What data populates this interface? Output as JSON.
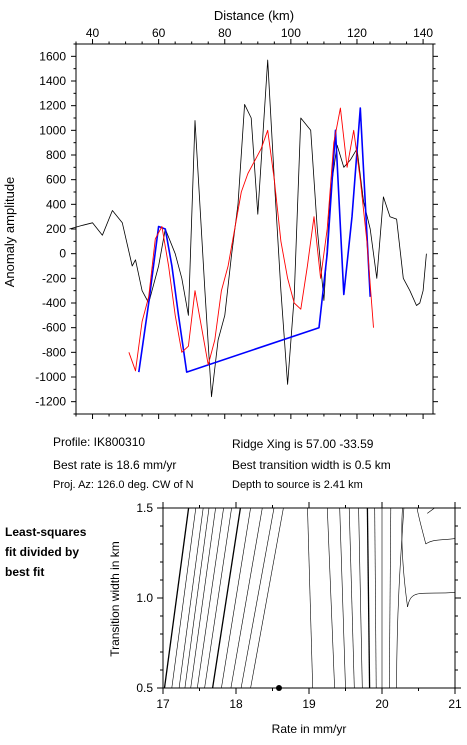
{
  "chart_data": [
    {
      "type": "line",
      "xlabel": "Distance (km)",
      "ylabel": "Anomaly amplitude",
      "xlim": [
        35,
        143
      ],
      "ylim": [
        -1300,
        1700
      ],
      "xticks": [
        40,
        60,
        80,
        100,
        120,
        140
      ],
      "yticks": [
        -1200,
        -1000,
        -800,
        -600,
        -400,
        -200,
        0,
        200,
        400,
        600,
        800,
        1000,
        1200,
        1400,
        1600
      ],
      "grid": false,
      "series": [
        {
          "color": "#000000",
          "x": [
            33,
            37,
            40,
            43,
            46,
            49,
            52,
            53,
            55,
            57,
            60,
            62,
            65,
            67,
            69,
            71,
            74,
            76,
            78,
            80,
            82,
            84,
            86,
            88,
            90,
            93,
            95,
            97,
            99,
            101,
            103,
            106,
            108,
            110,
            112,
            114,
            116,
            118,
            120,
            122,
            124,
            126,
            128,
            130,
            132,
            134,
            136,
            138,
            139,
            140,
            141
          ],
          "y": [
            200,
            230,
            250,
            150,
            350,
            250,
            -100,
            -50,
            -300,
            -400,
            -100,
            200,
            0,
            -200,
            -500,
            1080,
            -300,
            -1160,
            -700,
            -500,
            -20,
            400,
            1210,
            1100,
            320,
            1570,
            600,
            -300,
            -1060,
            -350,
            1100,
            1000,
            200,
            -380,
            500,
            880,
            700,
            760,
            850,
            420,
            200,
            -200,
            460,
            300,
            280,
            -200,
            -300,
            -420,
            -400,
            -300,
            0
          ]
        },
        {
          "color": "#0000ff",
          "x": [
            54,
            57,
            60,
            62,
            64,
            66,
            68.5,
            108.5,
            111,
            113.5,
            116,
            118.5,
            121,
            124
          ],
          "y": [
            -960,
            -400,
            220,
            200,
            -100,
            -500,
            -960,
            -600,
            0,
            1000,
            -330,
            300,
            1180,
            -350
          ]
        },
        {
          "color": "#ff0000",
          "x": [
            51,
            53,
            55,
            57,
            59,
            61,
            63,
            65,
            67,
            69,
            71,
            73,
            75,
            77,
            79,
            81,
            83,
            85,
            87,
            89,
            91,
            93,
            95,
            97,
            99,
            101,
            103,
            105,
            107,
            109,
            111,
            113,
            115,
            117,
            119,
            121,
            123,
            125
          ],
          "y": [
            -800,
            -950,
            -550,
            -350,
            120,
            220,
            -100,
            -500,
            -800,
            -750,
            -300,
            -600,
            -900,
            -700,
            -300,
            -100,
            200,
            500,
            650,
            750,
            850,
            1000,
            600,
            100,
            -200,
            -400,
            -450,
            -100,
            300,
            -200,
            200,
            900,
            1180,
            700,
            1000,
            600,
            100,
            -600
          ]
        }
      ]
    },
    {
      "type": "contour",
      "xlabel": "Rate in mm/yr",
      "ylabel": "Transition width in km",
      "xlim": [
        17,
        21
      ],
      "ylim": [
        0.5,
        1.5
      ],
      "xticks": [
        17,
        18,
        19,
        20,
        21
      ],
      "yticks": [
        0.5,
        1.0,
        1.5
      ],
      "best_fit": {
        "x": 18.6,
        "y": 0.5
      }
    }
  ],
  "text": {
    "xtick_labels_top": [
      "40",
      "60",
      "80",
      "100",
      "120",
      "140"
    ],
    "ytick_labels_top": [
      "-1200",
      "-1000",
      "-800",
      "-600",
      "-400",
      "-200",
      "0",
      "200",
      "400",
      "600",
      "800",
      "1000",
      "1200",
      "1400",
      "1600"
    ],
    "xtick_labels_bottom": [
      "17",
      "18",
      "19",
      "20",
      "21"
    ],
    "ytick_labels_bottom": [
      "0.5",
      "1.0",
      "1.5"
    ],
    "top_xlabel": "Distance (km)",
    "top_ylabel": "Anomaly amplitude",
    "bottom_xlabel": "Rate in mm/yr",
    "bottom_ylabel": "Transition width in km",
    "profile": "Profile: IK800310",
    "best_rate": "Best rate is 18.6 mm/yr",
    "proj_az": "Proj. Az: 126.0 deg. CW of N",
    "ridge_xing": "Ridge Xing is 57.00 -33.59",
    "best_transition": "Best transition width is 0.5 km",
    "depth": "Depth to source is   2.41 km",
    "side_label": [
      "Least-squares",
      "fit divided by",
      "best fit"
    ]
  },
  "colors": {
    "observed": "#000000",
    "model": "#ff0000",
    "highlight": "#0000ff"
  }
}
